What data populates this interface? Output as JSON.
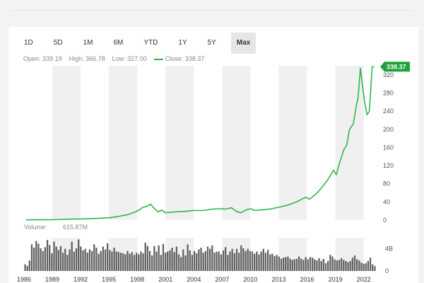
{
  "ranges": [
    "1D",
    "5D",
    "1M",
    "6M",
    "YTD",
    "1Y",
    "5Y",
    "Max"
  ],
  "active_range": "Max",
  "stats": {
    "open_label": "Open:",
    "open_value": "339.19",
    "high_label": "High:",
    "high_value": "366.78",
    "low_label": "Low:",
    "low_value": "327.00",
    "close_label": "Close:",
    "close_value": "338.37"
  },
  "volume": {
    "label": "Volume:",
    "value": "615.87M"
  },
  "colors": {
    "line": "#2db84a",
    "flag": "#1fa33a",
    "bar": "#5f5f5f",
    "band": "#f0f0f0"
  },
  "chart_data": {
    "type": "line",
    "series": [
      {
        "name": "Close",
        "x": [
          1986.2,
          1987,
          1988,
          1989,
          1990,
          1991,
          1992,
          1993,
          1994,
          1995,
          1996,
          1997,
          1997.8,
          1998.2,
          1998.6,
          1999,
          1999.4,
          1999.8,
          2000.2,
          2000.6,
          2001,
          2002,
          2003,
          2004,
          2005,
          2006,
          2006.8,
          2007.3,
          2008,
          2008.5,
          2009,
          2009.5,
          2010,
          2010.5,
          2011,
          2012,
          2013,
          2014,
          2015,
          2015.8,
          2016.3,
          2016.8,
          2017.3,
          2017.8,
          2018.3,
          2018.8,
          2019.1,
          2019.5,
          2019.9,
          2020.2,
          2020.5,
          2020.9,
          2021.2,
          2021.4,
          2021.65,
          2021.85,
          2022.1,
          2022.35,
          2022.6,
          2022.9,
          2023.1
        ],
        "y": [
          0.4,
          0.6,
          0.6,
          0.8,
          1.2,
          2,
          2.5,
          3,
          4,
          5,
          8,
          12,
          18,
          22,
          28,
          30,
          35,
          26,
          18,
          22,
          16,
          18,
          19,
          21,
          21,
          24,
          25,
          24,
          27,
          19,
          16,
          22,
          25,
          21,
          22,
          24,
          28,
          33,
          41,
          50,
          46,
          55,
          65,
          78,
          92,
          110,
          100,
          130,
          155,
          165,
          200,
          212,
          250,
          268,
          335,
          300,
          260,
          232,
          240,
          338,
          338
        ]
      }
    ],
    "x_ticks": [
      1986,
      1989,
      1992,
      1995,
      1998,
      2001,
      2004,
      2007,
      2010,
      2013,
      2016,
      2019,
      2022
    ],
    "y_ticks": [
      0,
      40,
      80,
      120,
      160,
      200,
      240,
      280,
      320
    ],
    "ylim": [
      0,
      340
    ],
    "xlim": [
      1986,
      2023.3
    ],
    "volume_axis_ticks": [
      "4B",
      "0"
    ],
    "volume_bars": [
      1.2,
      0.9,
      1.9,
      4.8,
      4.2,
      5.4,
      4.9,
      4.1,
      3.6,
      4.3,
      5.6,
      4.7,
      3.2,
      5.3,
      4.4,
      3.8,
      4.5,
      3.3,
      4.0,
      2.9,
      3.9,
      5.3,
      3.5,
      4.1,
      5.7,
      4.4,
      3.7,
      4.0,
      3.3,
      3.9,
      3.6,
      4.8,
      4.2,
      3.1,
      3.6,
      4.4,
      3.9,
      5.0,
      3.8,
      3.5,
      4.2,
      3.5,
      3.4,
      3.3,
      3.2,
      3.0,
      3.6,
      3.1,
      3.4,
      2.9,
      3.3,
      3.0,
      3.5,
      3.2,
      5.1,
      4.5,
      3.6,
      2.8,
      4.5,
      3.5,
      4.6,
      2.9,
      4.9,
      3.3,
      3.5,
      3.7,
      4.2,
      3.4,
      4.4,
      3.0,
      2.5,
      3.9,
      2.8,
      4.8,
      3.7,
      2.9,
      3.6,
      3.2,
      3.9,
      4.2,
      3.3,
      3.6,
      4.4,
      4.0,
      4.6,
      3.3,
      3.5,
      3.5,
      3.0,
      3.7,
      4.3,
      2.9,
      3.5,
      4.0,
      3.2,
      4.0,
      3.3,
      4.6,
      4.1,
      3.6,
      4.0,
      3.6,
      3.5,
      3.1,
      3.5,
      3.0,
      3.5,
      4.0,
      3.3,
      3.8,
      3.0,
      3.1,
      2.7,
      2.9,
      2.6,
      2.2,
      2.4,
      2.5,
      2.6,
      2.2,
      2.0,
      2.1,
      2.2,
      2.6,
      2.2,
      2.0,
      2.5,
      2.1,
      2.5,
      2.4,
      2.1,
      1.9,
      2.3,
      1.8,
      2.2,
      1.4,
      1.8,
      2.9,
      2.6,
      2.1,
      1.9,
      2.0,
      2.3,
      2.0,
      1.8,
      1.6,
      1.8,
      2.4,
      2.8,
      2.1,
      1.9,
      1.5,
      1.3,
      1.4,
      1.8,
      2.4,
      1.2,
      0.9
    ]
  }
}
